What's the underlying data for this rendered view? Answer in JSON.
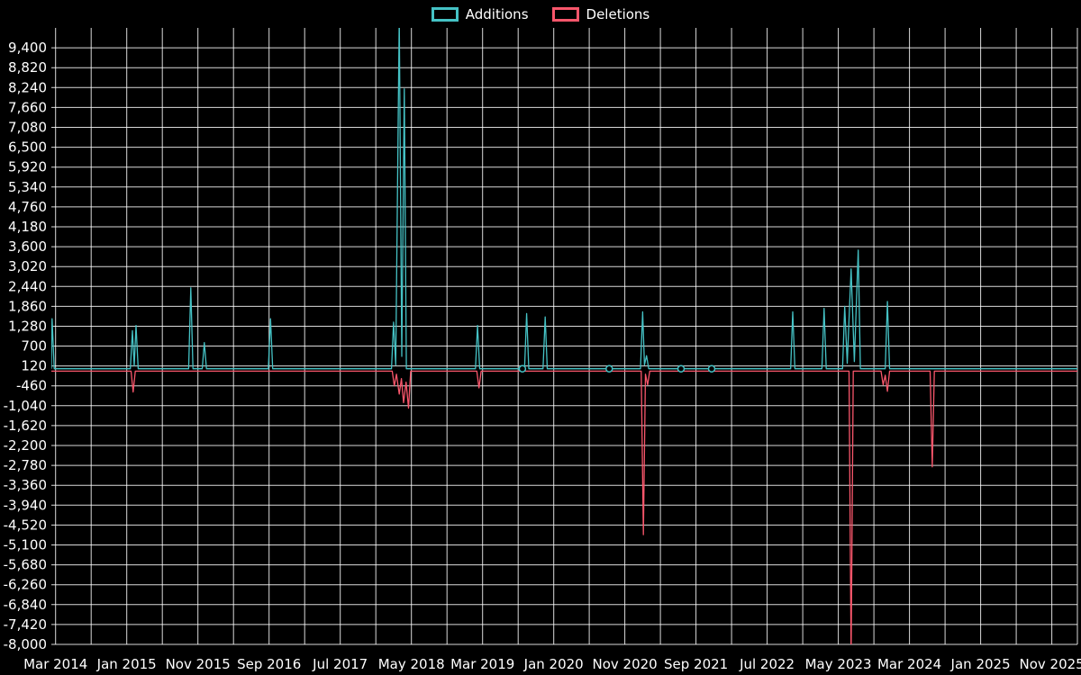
{
  "legend": {
    "items": [
      {
        "label": "Additions"
      },
      {
        "label": "Deletions"
      }
    ]
  },
  "chart_data": {
    "type": "line",
    "title": "",
    "x_unit": "months since Mar 2014",
    "xlim": [
      -0.6,
      143.6
    ],
    "ylim": [
      -8000,
      9980
    ],
    "x_grid_step": 5,
    "grid_color": "rgba(255,255,255,0.85)",
    "text_color": "#ffffff",
    "background": "#000000",
    "x_ticks": [
      {
        "value": 0,
        "label": "Mar 2014"
      },
      {
        "value": 10,
        "label": "Jan 2015"
      },
      {
        "value": 20,
        "label": "Nov 2015"
      },
      {
        "value": 30,
        "label": "Sep 2016"
      },
      {
        "value": 40,
        "label": "Jul 2017"
      },
      {
        "value": 50,
        "label": "May 2018"
      },
      {
        "value": 60,
        "label": "Mar 2019"
      },
      {
        "value": 70,
        "label": "Jan 2020"
      },
      {
        "value": 80,
        "label": "Nov 2020"
      },
      {
        "value": 90,
        "label": "Sep 2021"
      },
      {
        "value": 100,
        "label": "Jul 2022"
      },
      {
        "value": 110,
        "label": "May 2023"
      },
      {
        "value": 120,
        "label": "Mar 2024"
      },
      {
        "value": 130,
        "label": "Jan 2025"
      },
      {
        "value": 140,
        "label": "Nov 2025"
      }
    ],
    "y_ticks": [
      {
        "value": 9400,
        "label": "9,400"
      },
      {
        "value": 8820,
        "label": "8,820"
      },
      {
        "value": 8240,
        "label": "8,240"
      },
      {
        "value": 7660,
        "label": "7,660"
      },
      {
        "value": 7080,
        "label": "7,080"
      },
      {
        "value": 6500,
        "label": "6,500"
      },
      {
        "value": 5920,
        "label": "5,920"
      },
      {
        "value": 5340,
        "label": "5,340"
      },
      {
        "value": 4760,
        "label": "4,760"
      },
      {
        "value": 4180,
        "label": "4,180"
      },
      {
        "value": 3600,
        "label": "3,600"
      },
      {
        "value": 3020,
        "label": "3,020"
      },
      {
        "value": 2440,
        "label": "2,440"
      },
      {
        "value": 1860,
        "label": "1,860"
      },
      {
        "value": 1280,
        "label": "1,280"
      },
      {
        "value": 700,
        "label": "700"
      },
      {
        "value": 120,
        "label": "120"
      },
      {
        "value": -460,
        "label": "-460"
      },
      {
        "value": -1040,
        "label": "-1,040"
      },
      {
        "value": -1620,
        "label": "-1,620"
      },
      {
        "value": -2200,
        "label": "-2,200"
      },
      {
        "value": -2780,
        "label": "-2,780"
      },
      {
        "value": -3360,
        "label": "-3,360"
      },
      {
        "value": -3940,
        "label": "-3,940"
      },
      {
        "value": -4520,
        "label": "-4,520"
      },
      {
        "value": -5100,
        "label": "-5,100"
      },
      {
        "value": -5680,
        "label": "-5,680"
      },
      {
        "value": -6260,
        "label": "-6,260"
      },
      {
        "value": -6840,
        "label": "-6,840"
      },
      {
        "value": -7420,
        "label": "-7,420"
      },
      {
        "value": -8000,
        "label": "-8,000"
      }
    ],
    "series": [
      {
        "name": "Additions",
        "color": "#45c2c5",
        "points": [
          [
            -0.6,
            40
          ],
          [
            -0.5,
            1500
          ],
          [
            -0.2,
            40
          ],
          [
            10.5,
            40
          ],
          [
            10.8,
            1150
          ],
          [
            11.05,
            120
          ],
          [
            11.3,
            1300
          ],
          [
            11.6,
            40
          ],
          [
            18.7,
            40
          ],
          [
            19.0,
            2400
          ],
          [
            19.3,
            40
          ],
          [
            20.6,
            40
          ],
          [
            20.9,
            800
          ],
          [
            21.2,
            40
          ],
          [
            29.9,
            40
          ],
          [
            30.2,
            1500
          ],
          [
            30.5,
            40
          ],
          [
            47.2,
            40
          ],
          [
            47.5,
            1400
          ],
          [
            47.8,
            150
          ],
          [
            48.3,
            10300
          ],
          [
            48.65,
            400
          ],
          [
            49.0,
            8200
          ],
          [
            49.3,
            40
          ],
          [
            59.0,
            40
          ],
          [
            59.3,
            1300
          ],
          [
            59.6,
            40
          ],
          [
            65.9,
            40
          ],
          [
            66.2,
            1650
          ],
          [
            66.5,
            40
          ],
          [
            68.5,
            40
          ],
          [
            68.8,
            1550
          ],
          [
            69.1,
            40
          ],
          [
            82.2,
            40
          ],
          [
            82.5,
            1700
          ],
          [
            82.75,
            150
          ],
          [
            83.05,
            420
          ],
          [
            83.35,
            40
          ],
          [
            103.3,
            40
          ],
          [
            103.6,
            1700
          ],
          [
            103.9,
            40
          ],
          [
            107.7,
            40
          ],
          [
            108.0,
            1800
          ],
          [
            108.3,
            40
          ],
          [
            110.6,
            40
          ],
          [
            110.9,
            1860
          ],
          [
            111.25,
            200
          ],
          [
            111.8,
            2950
          ],
          [
            112.25,
            250
          ],
          [
            112.8,
            3500
          ],
          [
            113.1,
            40
          ],
          [
            116.6,
            40
          ],
          [
            116.9,
            2000
          ],
          [
            117.2,
            40
          ],
          [
            143.6,
            40
          ]
        ]
      },
      {
        "name": "Deletions",
        "color": "#f8566b",
        "points": [
          [
            -0.6,
            -30
          ],
          [
            10.6,
            -30
          ],
          [
            10.9,
            -640
          ],
          [
            11.2,
            -30
          ],
          [
            47.3,
            -30
          ],
          [
            47.6,
            -460
          ],
          [
            47.9,
            -120
          ],
          [
            48.3,
            -700
          ],
          [
            48.6,
            -250
          ],
          [
            48.9,
            -950
          ],
          [
            49.25,
            -350
          ],
          [
            49.6,
            -1110
          ],
          [
            49.9,
            -30
          ],
          [
            59.2,
            -30
          ],
          [
            59.5,
            -520
          ],
          [
            59.8,
            -30
          ],
          [
            82.3,
            -30
          ],
          [
            82.6,
            -4800
          ],
          [
            82.9,
            -120
          ],
          [
            83.2,
            -430
          ],
          [
            83.5,
            -30
          ],
          [
            111.5,
            -30
          ],
          [
            111.8,
            -8350
          ],
          [
            112.1,
            -30
          ],
          [
            116.0,
            -30
          ],
          [
            116.3,
            -430
          ],
          [
            116.6,
            -150
          ],
          [
            116.9,
            -620
          ],
          [
            117.2,
            -30
          ],
          [
            122.9,
            -30
          ],
          [
            123.2,
            -2820
          ],
          [
            123.5,
            -30
          ],
          [
            143.6,
            -30
          ]
        ]
      }
    ],
    "isolated_points": [
      {
        "series": 0,
        "x": 65.6,
        "y": 40
      },
      {
        "series": 0,
        "x": 77.8,
        "y": 40
      },
      {
        "series": 0,
        "x": 87.9,
        "y": 40
      },
      {
        "series": 0,
        "x": 92.2,
        "y": 40
      }
    ]
  }
}
